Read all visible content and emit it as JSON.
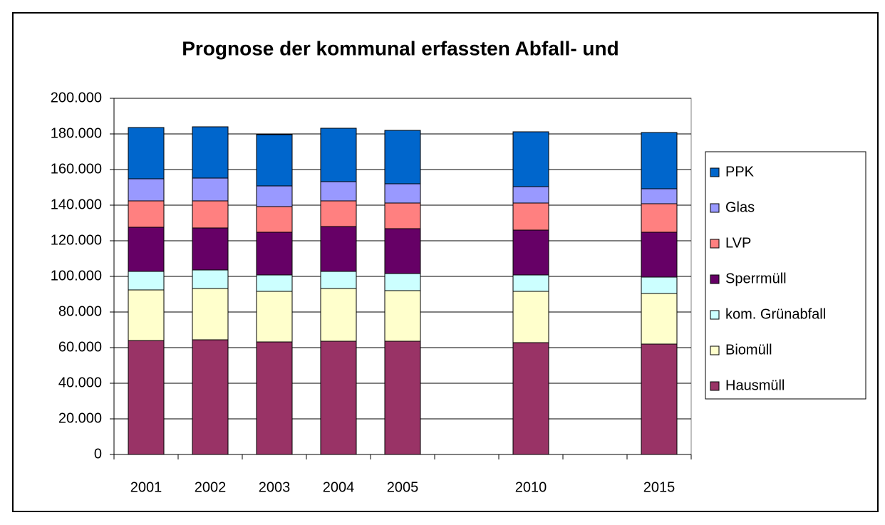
{
  "chart_data": {
    "type": "stacked_bar",
    "title": "Prognose der kommunal erfassten Abfall- und",
    "categories": [
      "2001",
      "2002",
      "2003",
      "2004",
      "2005",
      null,
      "2010",
      null,
      "2015"
    ],
    "series": [
      {
        "name": "Hausmüll",
        "color": "#993366",
        "values": [
          64000,
          64400,
          63200,
          63600,
          63600,
          null,
          62800,
          null,
          62000
        ]
      },
      {
        "name": "Biomüll",
        "color": "#ffffcc",
        "values": [
          28400,
          28800,
          28400,
          29600,
          28400,
          null,
          28800,
          null,
          28400
        ]
      },
      {
        "name": "kom. Grünabfall",
        "color": "#ccffff",
        "values": [
          10400,
          10400,
          9200,
          9600,
          9600,
          null,
          9200,
          null,
          9200
        ]
      },
      {
        "name": "Sperrmüll",
        "color": "#660066",
        "values": [
          24800,
          23600,
          24000,
          25200,
          25200,
          null,
          25200,
          null,
          25200
        ]
      },
      {
        "name": "LVP",
        "color": "#ff8080",
        "values": [
          14800,
          15200,
          14400,
          14400,
          14400,
          null,
          15200,
          null,
          16000
        ]
      },
      {
        "name": "Glas",
        "color": "#9999ff",
        "values": [
          12400,
          12800,
          11600,
          10800,
          10800,
          null,
          9200,
          null,
          8400
        ]
      },
      {
        "name": "PPK",
        "color": "#0066cc",
        "values": [
          28800,
          28800,
          28800,
          30000,
          30000,
          null,
          30800,
          null,
          31600
        ]
      }
    ],
    "ylim": [
      0,
      200000
    ],
    "yticks": [
      0,
      {
        "value": 20000,
        "label": "20.000"
      },
      {
        "value": 40000,
        "label": "40.000"
      },
      {
        "value": 60000,
        "label": "60.000"
      },
      {
        "value": 80000,
        "label": "80.000"
      },
      {
        "value": 100000,
        "label": "100.000"
      },
      {
        "value": 120000,
        "label": "120.000"
      },
      {
        "value": 140000,
        "label": "140.000"
      },
      {
        "value": 160000,
        "label": "160.000"
      },
      {
        "value": 180000,
        "label": "180.000"
      },
      {
        "value": 200000,
        "label": "200.000"
      }
    ],
    "grid": true,
    "legend": "right"
  }
}
